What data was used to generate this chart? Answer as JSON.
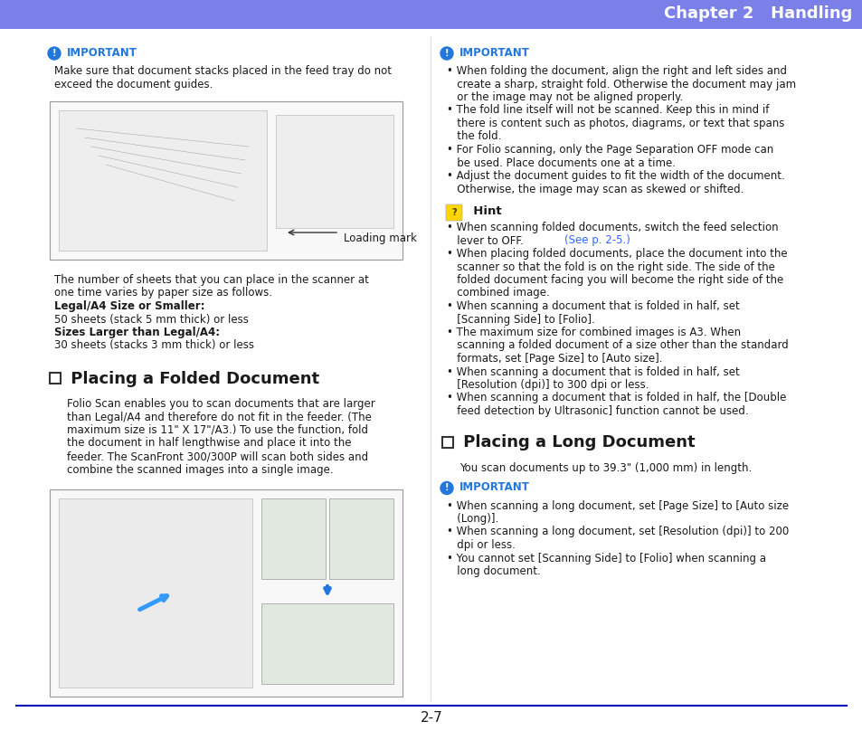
{
  "header_color": "#7B7FE8",
  "header_text": "Chapter 2   Handling",
  "header_text_color": "#FFFFFF",
  "footer_line_color": "#0000BB",
  "footer_text": "2-7",
  "bg_color": "#FFFFFF",
  "body_text_color": "#1a1a1a",
  "important_icon_color": "#2277DD",
  "important_text_color": "#2277DD",
  "blue_link_color": "#3366FF",
  "hint_text_color": "#1a1a1a",
  "left_important_body": [
    "Make sure that document stacks placed in the feed tray do not",
    "exceed the document guides."
  ],
  "left_p1": [
    [
      "The number of sheets that you can place in the scanner at",
      false
    ],
    [
      "one time varies by paper size as follows.",
      false
    ],
    [
      "Legal/A4 Size or Smaller:",
      true
    ],
    [
      "50 sheets (stack 5 mm thick) or less",
      false
    ],
    [
      "Sizes Larger than Legal/A4:",
      true
    ],
    [
      "30 sheets (stacks 3 mm thick) or less",
      false
    ]
  ],
  "section1": "Placing a Folded Document",
  "left_p2": [
    "Folio Scan enables you to scan documents that are larger",
    "than Legal/A4 and therefore do not fit in the feeder. (The",
    "maximum size is 11\" X 17\"/A3.) To use the function, fold",
    "the document in half lengthwise and place it into the",
    "feeder. The ScanFront 300/300P will scan both sides and",
    "combine the scanned images into a single image."
  ],
  "right_important_lines": [
    "• When folding the document, align the right and left sides and",
    "   create a sharp, straight fold. Otherwise the document may jam",
    "   or the image may not be aligned properly.",
    "• The fold line itself will not be scanned. Keep this in mind if",
    "   there is content such as photos, diagrams, or text that spans",
    "   the fold.",
    "• For Folio scanning, only the Page Separation OFF mode can",
    "   be used. Place documents one at a time.",
    "• Adjust the document guides to fit the width of the document.",
    "   Otherwise, the image may scan as skewed or shifted."
  ],
  "hint_lines": [
    "• When scanning folded documents, switch the feed selection",
    "   lever to OFF.                 ",
    "• When placing folded documents, place the document into the",
    "   scanner so that the fold is on the right side. The side of the",
    "   folded document facing you will become the right side of the",
    "   combined image.",
    "• When scanning a document that is folded in half, set",
    "   [Scanning Side] to [Folio].",
    "• The maximum size for combined images is A3. When",
    "   scanning a folded document of a size other than the standard",
    "   formats, set [Page Size] to [Auto size].",
    "• When scanning a document that is folded in half, set",
    "   [Resolution (dpi)] to 300 dpi or less.",
    "• When scanning a document that is folded in half, the [Double",
    "   feed detection by Ultrasonic] function cannot be used."
  ],
  "section2": "Placing a Long Document",
  "p3": "You scan documents up to 39.3\" (1,000 mm) in length.",
  "right_important2_lines": [
    "• When scanning a long document, set [Page Size] to [Auto size",
    "   (Long)].",
    "• When scanning a long document, set [Resolution (dpi)] to 200",
    "   dpi or less.",
    "• You cannot set [Scanning Side] to [Folio] when scanning a",
    "   long document."
  ]
}
